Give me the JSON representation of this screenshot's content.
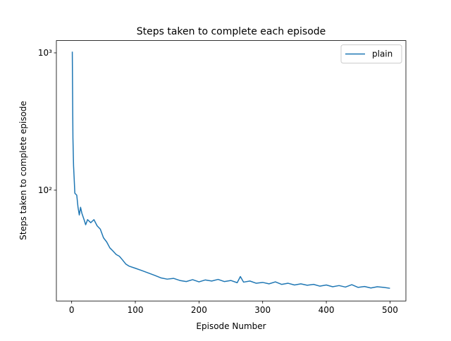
{
  "chart_data": {
    "type": "line",
    "title": "Steps taken to complete each episode",
    "xlabel": "Episode Number",
    "ylabel": "Steps taken to complete episode",
    "x": [
      1,
      2,
      3,
      4,
      5,
      8,
      10,
      12,
      14,
      16,
      20,
      22,
      25,
      30,
      35,
      40,
      45,
      50,
      55,
      60,
      65,
      70,
      75,
      80,
      85,
      90,
      100,
      110,
      120,
      130,
      140,
      150,
      160,
      170,
      180,
      190,
      200,
      210,
      220,
      230,
      240,
      250,
      260,
      265,
      270,
      280,
      290,
      300,
      310,
      320,
      330,
      340,
      350,
      360,
      370,
      380,
      390,
      400,
      410,
      420,
      430,
      440,
      450,
      460,
      470,
      480,
      490,
      500
    ],
    "series": [
      {
        "name": "plain",
        "color": "#1f77b4",
        "values": [
          1020,
          240,
          150,
          120,
          95,
          92,
          75,
          66,
          75,
          68,
          60,
          56,
          61,
          58,
          61,
          55,
          52,
          45,
          42,
          38,
          36,
          34,
          33,
          31,
          29,
          28,
          27,
          26,
          25,
          24,
          23,
          22.5,
          22.8,
          22,
          21.6,
          22.3,
          21.5,
          22.2,
          21.8,
          22.4,
          21.6,
          22,
          21.2,
          23.5,
          21.4,
          21.8,
          21,
          21.3,
          20.8,
          21.5,
          20.6,
          21,
          20.4,
          20.8,
          20.3,
          20.6,
          20,
          20.4,
          19.8,
          20.2,
          19.7,
          20.5,
          19.6,
          19.9,
          19.4,
          19.8,
          19.6,
          19.3
        ]
      }
    ],
    "xlim": [
      -24,
      525
    ],
    "xticks": [
      0,
      100,
      200,
      300,
      400,
      500
    ],
    "ylim": [
      15.6,
      1228
    ],
    "yticks": [
      {
        "value": 100,
        "label": "10²"
      },
      {
        "value": 1000,
        "label": "10³"
      }
    ],
    "log_y": true,
    "legend": "upper right"
  }
}
